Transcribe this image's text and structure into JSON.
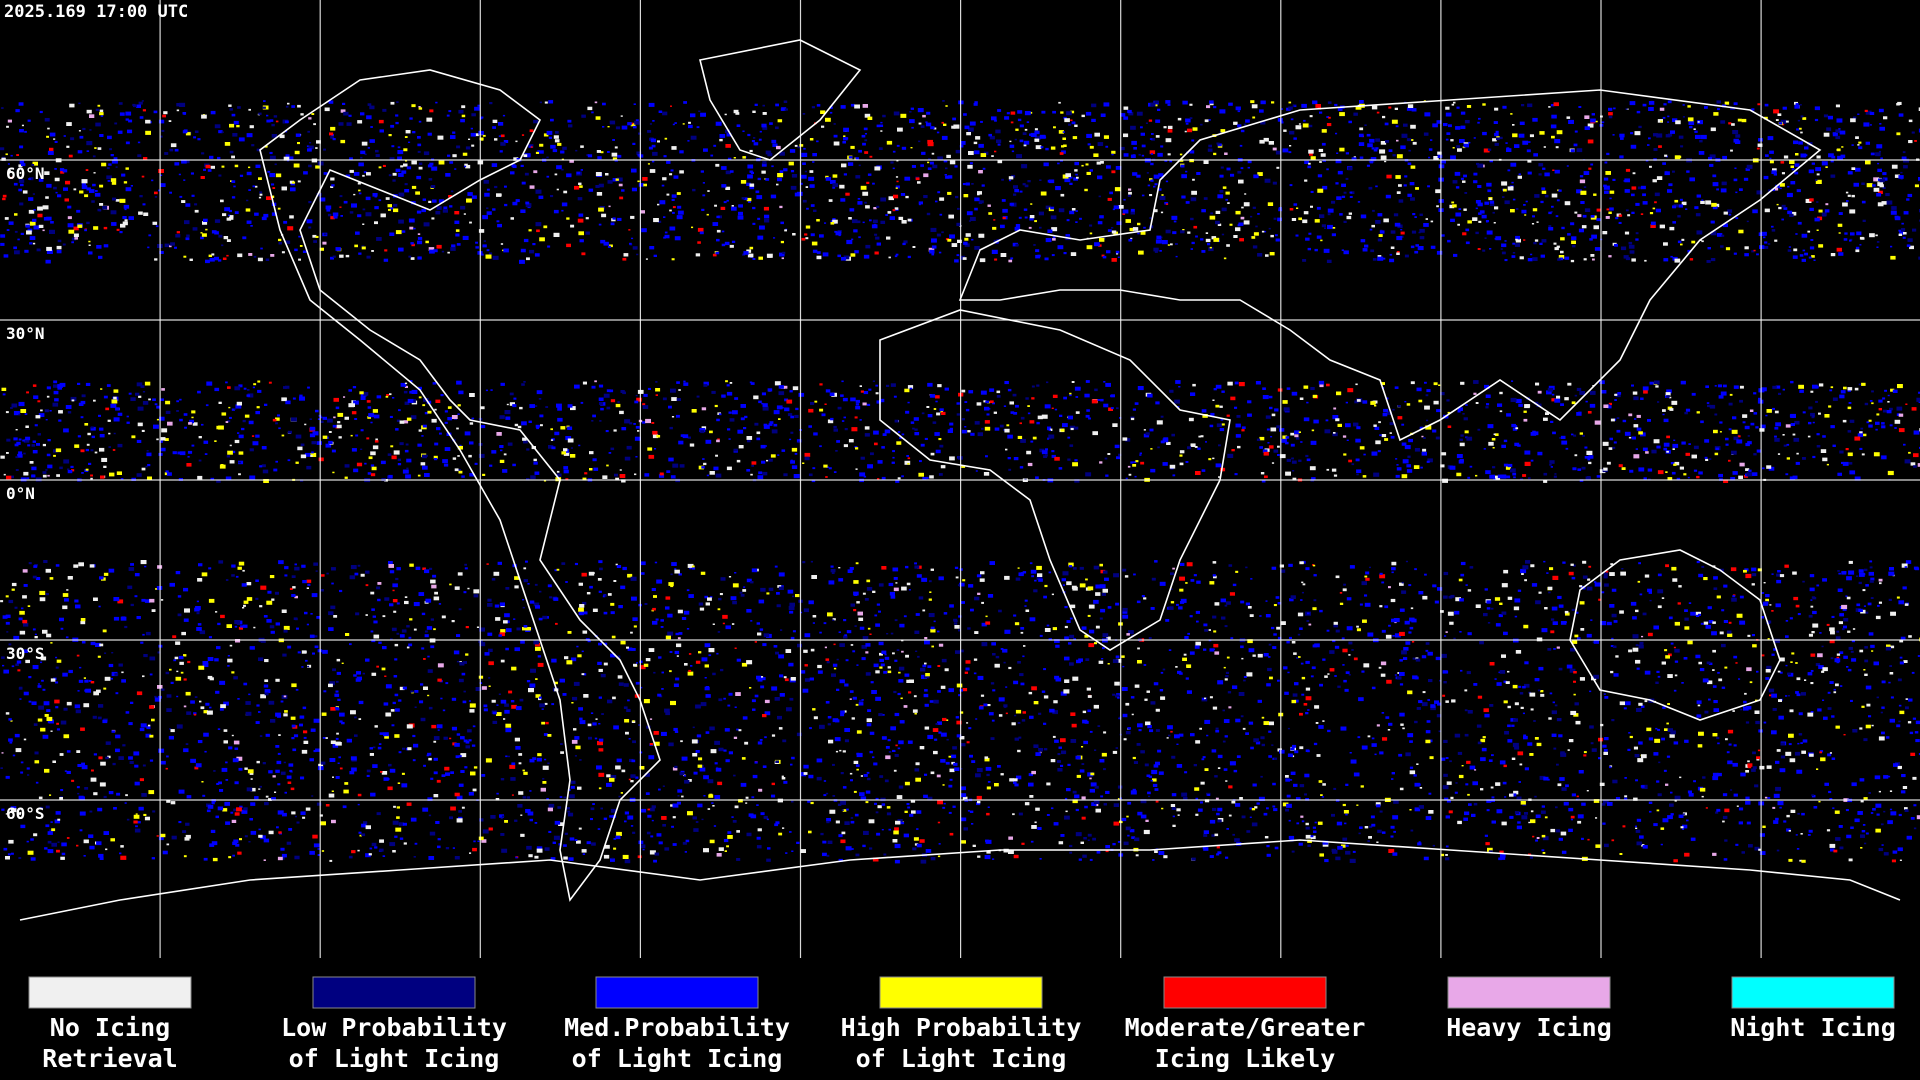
{
  "header": {
    "timestamp": "2025.169 17:00 UTC"
  },
  "map": {
    "latitude_labels": [
      "60°N",
      "30°N",
      "0°N",
      "30°S",
      "60°S"
    ]
  },
  "legend": [
    {
      "lines": [
        "No Icing",
        "Retrieval"
      ],
      "color": "#f0f0f0"
    },
    {
      "lines": [
        "Low Probability",
        "of Light Icing"
      ],
      "color": "#000080"
    },
    {
      "lines": [
        "Med.Probability",
        "of Light Icing"
      ],
      "color": "#0000ff"
    },
    {
      "lines": [
        "High Probability",
        "of Light Icing"
      ],
      "color": "#ffff00"
    },
    {
      "lines": [
        "Moderate/Greater",
        "Icing Likely"
      ],
      "color": "#ff0000"
    },
    {
      "lines": [
        "Heavy Icing"
      ],
      "color": "#e8a8e8"
    },
    {
      "lines": [
        "Night Icing"
      ],
      "color": "#00ffff"
    }
  ]
}
